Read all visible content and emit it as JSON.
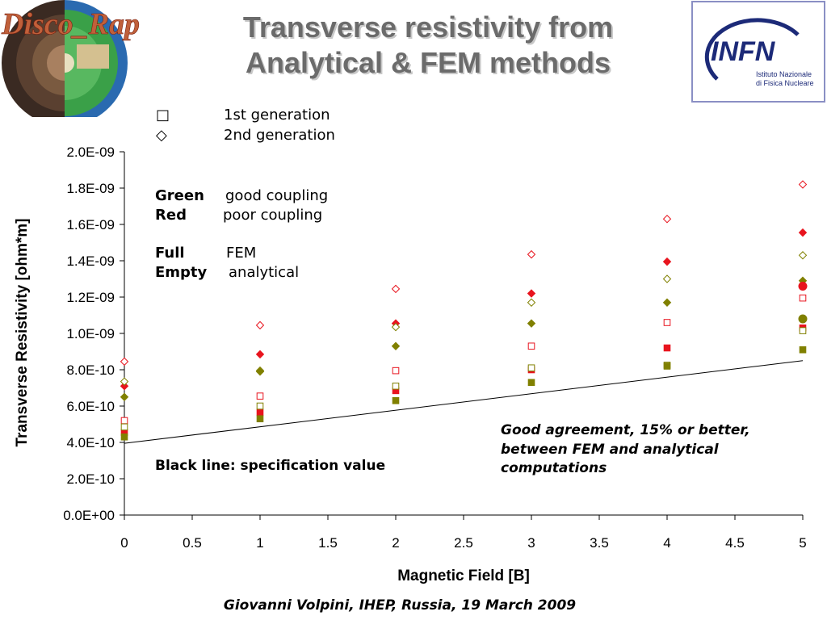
{
  "header": {
    "logo_left_text": "Disco_Rap",
    "title_line1": "Transverse resistivity from",
    "title_line2": "Analytical & FEM methods",
    "logo_right_text": "INFN",
    "logo_right_sub1": "Istituto Nazionale",
    "logo_right_sub2": "di Fisica Nucleare"
  },
  "legend": {
    "gen1_symbol": "□",
    "gen1_label": "1st generation",
    "gen2_symbol": "◇",
    "gen2_label": "2nd generation",
    "green_key": "Green",
    "green_label": "good coupling",
    "red_key": "Red",
    "red_label": "poor coupling",
    "full_key": "Full",
    "full_label": "FEM",
    "empty_key": "Empty",
    "empty_label": "analytical"
  },
  "annotations": {
    "spec_line": "Black line: specification value",
    "agreement_line1": "Good agreement, 15% or better,",
    "agreement_line2": "between FEM and analytical",
    "agreement_line3": "computations"
  },
  "footer": {
    "text": "Giovanni Volpini, IHEP, Russia, 19 March 2009"
  },
  "colors": {
    "green": "#808000",
    "red": "#e8141e",
    "line": "#000000",
    "title": "#6b6b6b"
  },
  "chart_data": {
    "type": "scatter",
    "xlabel": "Magnetic Field [B]",
    "ylabel": "Transverse Resistivity [ohm*m]",
    "xlim": [
      0,
      5
    ],
    "ylim": [
      0,
      2e-09
    ],
    "x_ticks": [
      "0",
      "0.5",
      "1",
      "1.5",
      "2",
      "2.5",
      "3",
      "3.5",
      "4",
      "4.5",
      "5"
    ],
    "x_tick_values": [
      0,
      0.5,
      1,
      1.5,
      2,
      2.5,
      3,
      3.5,
      4,
      4.5,
      5
    ],
    "y_ticks": [
      "0.0E+00",
      "2.0E-10",
      "4.0E-10",
      "6.0E-10",
      "8.0E-10",
      "1.0E-09",
      "1.2E-09",
      "1.4E-09",
      "1.6E-09",
      "1.8E-09",
      "2.0E-09"
    ],
    "y_tick_values": [
      0,
      2e-10,
      4e-10,
      6e-10,
      8e-10,
      1e-09,
      1.2e-09,
      1.4e-09,
      1.6e-09,
      1.8e-09,
      2e-09
    ],
    "grid": false,
    "series": [
      {
        "name": "",
        "marker": "diamond",
        "color": "red",
        "filled": false,
        "x": [
          0,
          1,
          2,
          3,
          4,
          5
        ],
        "y": [
          8.45e-10,
          1.045e-09,
          1.245e-09,
          1.435e-09,
          1.63e-09,
          1.82e-09
        ]
      },
      {
        "name": "",
        "marker": "diamond",
        "color": "red",
        "filled": true,
        "x": [
          0,
          1,
          2,
          3,
          4,
          5
        ],
        "y": [
          7.1e-10,
          8.85e-10,
          1.055e-09,
          1.22e-09,
          1.395e-09,
          1.555e-09
        ]
      },
      {
        "name": "",
        "marker": "diamond",
        "color": "green",
        "filled": false,
        "x": [
          0,
          1,
          2,
          3,
          4,
          5
        ],
        "y": [
          7.35e-10,
          7.95e-10,
          1.035e-09,
          1.17e-09,
          1.3e-09,
          1.43e-09
        ]
      },
      {
        "name": "",
        "marker": "diamond",
        "color": "green",
        "filled": true,
        "x": [
          0,
          1,
          2,
          3,
          4,
          5
        ],
        "y": [
          6.5e-10,
          7.9e-10,
          9.3e-10,
          1.055e-09,
          1.17e-09,
          1.29e-09
        ]
      },
      {
        "name": "",
        "marker": "square",
        "color": "red",
        "filled": false,
        "x": [
          0,
          1,
          2,
          3,
          4,
          5
        ],
        "y": [
          5.2e-10,
          6.55e-10,
          7.95e-10,
          9.3e-10,
          1.06e-09,
          1.195e-09
        ]
      },
      {
        "name": "",
        "marker": "square",
        "color": "red",
        "filled": true,
        "x": [
          0,
          1,
          2,
          3,
          4,
          5
        ],
        "y": [
          4.55e-10,
          5.65e-10,
          6.85e-10,
          8e-10,
          9.2e-10,
          1.03e-09
        ]
      },
      {
        "name": "",
        "marker": "square",
        "color": "green",
        "filled": false,
        "x": [
          0,
          1,
          2,
          3,
          4,
          5
        ],
        "y": [
          4.85e-10,
          6e-10,
          7.1e-10,
          8.1e-10,
          8.25e-10,
          1.015e-09
        ]
      },
      {
        "name": "",
        "marker": "square",
        "color": "green",
        "filled": true,
        "x": [
          0,
          1,
          2,
          3,
          4,
          5
        ],
        "y": [
          4.3e-10,
          5.3e-10,
          6.3e-10,
          7.3e-10,
          8.2e-10,
          9.1e-10
        ]
      },
      {
        "name": "",
        "marker": "circle",
        "color": "red",
        "filled": true,
        "x": [
          5
        ],
        "y": [
          1.26e-09
        ]
      },
      {
        "name": "",
        "marker": "circle",
        "color": "green",
        "filled": true,
        "x": [
          5
        ],
        "y": [
          1.08e-09
        ]
      }
    ],
    "spec_line": {
      "x": [
        0,
        5
      ],
      "y": [
        3.95e-10,
        8.5e-10
      ]
    }
  }
}
